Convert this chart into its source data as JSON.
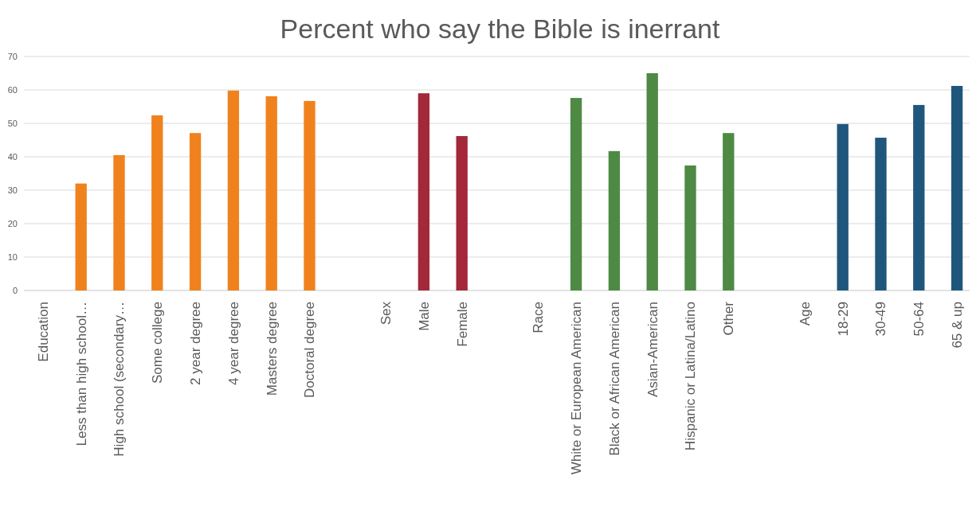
{
  "chart_data": {
    "type": "bar",
    "title": "Percent who say the Bible is inerrant",
    "categories": [
      "Education",
      "Less than high school…",
      "High school (secondary…",
      "Some college",
      "2 year degree",
      "4 year degree",
      "Masters degree",
      "Doctoral degree",
      null,
      "Sex",
      "Male",
      "Female",
      null,
      "Race",
      "White or European American",
      "Black or African American",
      "Asian-American",
      "Hispanic or Latina/Latino",
      "Other",
      null,
      "Age",
      "18-29",
      "30-49",
      "50-64",
      "65 & up"
    ],
    "values": [
      null,
      32,
      40.5,
      52.4,
      47.1,
      59.8,
      58.1,
      56.7,
      null,
      null,
      59,
      46.2,
      null,
      null,
      57.6,
      41.7,
      65,
      37.4,
      47.1,
      null,
      null,
      49.8,
      45.7,
      55.5,
      61.2
    ],
    "colors": [
      null,
      "#f0821e",
      "#f0821e",
      "#f0821e",
      "#f0821e",
      "#f0821e",
      "#f0821e",
      "#f0821e",
      null,
      null,
      "#a3283a",
      "#a3283a",
      null,
      null,
      "#4e8a44",
      "#4e8a44",
      "#4e8a44",
      "#4e8a44",
      "#4e8a44",
      null,
      null,
      "#1f577c",
      "#1f577c",
      "#1f577c",
      "#1f577c"
    ],
    "ylim": [
      0,
      70
    ],
    "yticks": [
      0,
      10,
      20,
      30,
      40,
      50,
      60,
      70
    ],
    "grid": "y"
  }
}
